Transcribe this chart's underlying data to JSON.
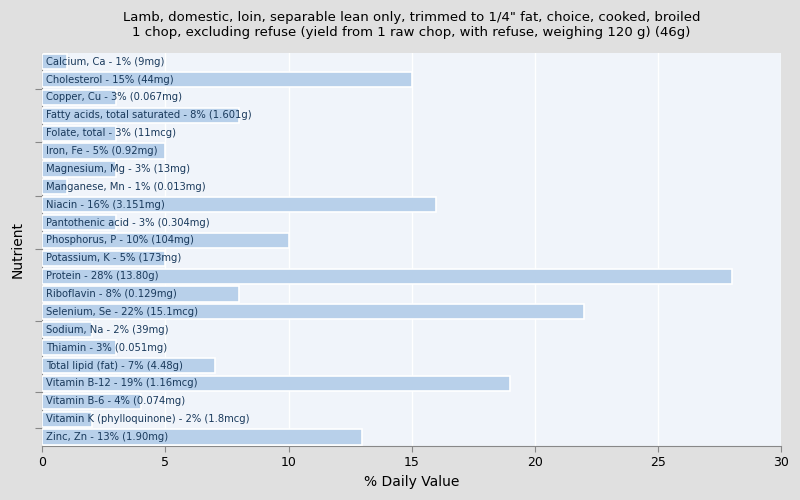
{
  "title": "Lamb, domestic, loin, separable lean only, trimmed to 1/4\" fat, choice, cooked, broiled\n1 chop, excluding refuse (yield from 1 raw chop, with refuse, weighing 120 g) (46g)",
  "xlabel": "% Daily Value",
  "ylabel": "Nutrient",
  "xlim": [
    0,
    30
  ],
  "fig_bg": "#e0e0e0",
  "plot_bg": "#f0f4fa",
  "bar_color": "#b8d0ea",
  "text_color": "#1a3a5c",
  "grid_color": "#ffffff",
  "spine_color": "#888888",
  "nutrients": [
    {
      "label": "Calcium, Ca - 1% (9mg)",
      "value": 1
    },
    {
      "label": "Cholesterol - 15% (44mg)",
      "value": 15
    },
    {
      "label": "Copper, Cu - 3% (0.067mg)",
      "value": 3
    },
    {
      "label": "Fatty acids, total saturated - 8% (1.601g)",
      "value": 8
    },
    {
      "label": "Folate, total - 3% (11mcg)",
      "value": 3
    },
    {
      "label": "Iron, Fe - 5% (0.92mg)",
      "value": 5
    },
    {
      "label": "Magnesium, Mg - 3% (13mg)",
      "value": 3
    },
    {
      "label": "Manganese, Mn - 1% (0.013mg)",
      "value": 1
    },
    {
      "label": "Niacin - 16% (3.151mg)",
      "value": 16
    },
    {
      "label": "Pantothenic acid - 3% (0.304mg)",
      "value": 3
    },
    {
      "label": "Phosphorus, P - 10% (104mg)",
      "value": 10
    },
    {
      "label": "Potassium, K - 5% (173mg)",
      "value": 5
    },
    {
      "label": "Protein - 28% (13.80g)",
      "value": 28
    },
    {
      "label": "Riboflavin - 8% (0.129mg)",
      "value": 8
    },
    {
      "label": "Selenium, Se - 22% (15.1mcg)",
      "value": 22
    },
    {
      "label": "Sodium, Na - 2% (39mg)",
      "value": 2
    },
    {
      "label": "Thiamin - 3% (0.051mg)",
      "value": 3
    },
    {
      "label": "Total lipid (fat) - 7% (4.48g)",
      "value": 7
    },
    {
      "label": "Vitamin B-12 - 19% (1.16mcg)",
      "value": 19
    },
    {
      "label": "Vitamin B-6 - 4% (0.074mg)",
      "value": 4
    },
    {
      "label": "Vitamin K (phylloquinone) - 2% (1.8mcg)",
      "value": 2
    },
    {
      "label": "Zinc, Zn - 13% (1.90mg)",
      "value": 13
    }
  ],
  "group_tick_positions": [
    0.5,
    2.5,
    6.5,
    10.5,
    13.5,
    16.5,
    19.5
  ]
}
